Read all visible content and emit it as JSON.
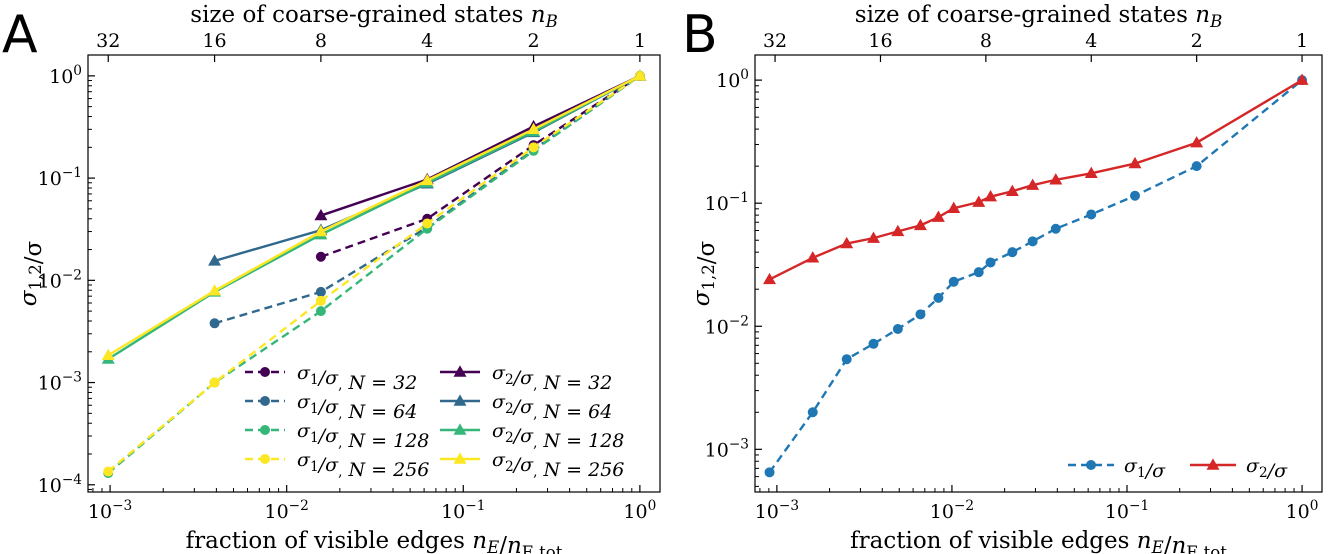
{
  "chart_data": [
    {
      "type": "line",
      "panel_label": "A",
      "xlabel_bottom": "fraction of visible edges nE/nE,tot",
      "xlabel_top": "size of coarse-grained states nB",
      "ylabel": "σ1,2/σ",
      "xscale": "log",
      "yscale": "log",
      "xlim": [
        0.00075,
        1.3
      ],
      "ylim": [
        8.5e-05,
        1.6
      ],
      "x_ticks": [
        "10^-3",
        "10^-2",
        "10^-1",
        "10^0"
      ],
      "y_ticks": [
        "10^-4",
        "10^-3",
        "10^-2",
        "10^-1",
        "10^0"
      ],
      "top_ticks": [
        "32",
        "16",
        "8",
        "4",
        "2",
        "1"
      ],
      "legend_position": "lower-right",
      "series": [
        {
          "name": "σ1/σ, N = 32",
          "legend_label": "σ1/σ, N = 32",
          "color": "#440154",
          "style": "dashed",
          "marker": "circle",
          "x": [
            0.015625,
            0.0625,
            0.25,
            1.0
          ],
          "y": [
            0.017,
            0.04,
            0.21,
            1.0
          ]
        },
        {
          "name": "σ1/σ, N = 64",
          "legend_label": "σ1/σ, N = 64",
          "color": "#31688e",
          "style": "dashed",
          "marker": "circle",
          "x": [
            0.00390625,
            0.015625,
            0.0625,
            0.25,
            1.0
          ],
          "y": [
            0.0038,
            0.0077,
            0.033,
            0.19,
            1.0
          ]
        },
        {
          "name": "σ1/σ, N = 128",
          "legend_label": "σ1/σ, N = 128",
          "color": "#35b779",
          "style": "dashed",
          "marker": "circle",
          "x": [
            0.0009765625,
            0.00390625,
            0.015625,
            0.0625,
            0.25,
            1.0
          ],
          "y": [
            0.00013,
            0.001,
            0.005,
            0.032,
            0.185,
            1.0
          ]
        },
        {
          "name": "σ1/σ, N = 256",
          "legend_label": "σ1/σ, N = 256",
          "color": "#fde725",
          "style": "dashed",
          "marker": "circle",
          "x": [
            0.0009765625,
            0.00390625,
            0.015625,
            0.0625,
            0.25,
            1.0
          ],
          "y": [
            0.000135,
            0.001,
            0.0063,
            0.036,
            0.2,
            1.0
          ]
        },
        {
          "name": "σ2/σ, N = 32",
          "legend_label": "σ2/σ, N = 32",
          "color": "#440154",
          "style": "solid",
          "marker": "triangle",
          "x": [
            0.015625,
            0.0625,
            0.25,
            1.0
          ],
          "y": [
            0.043,
            0.097,
            0.32,
            1.0
          ]
        },
        {
          "name": "σ2/σ, N = 64",
          "legend_label": "σ2/σ, N = 64",
          "color": "#31688e",
          "style": "solid",
          "marker": "triangle",
          "x": [
            0.00390625,
            0.015625,
            0.0625,
            0.25,
            1.0
          ],
          "y": [
            0.0155,
            0.031,
            0.088,
            0.28,
            1.0
          ]
        },
        {
          "name": "σ2/σ, N = 128",
          "legend_label": "σ2/σ, N = 128",
          "color": "#35b779",
          "style": "solid",
          "marker": "triangle",
          "x": [
            0.0009765625,
            0.00390625,
            0.015625,
            0.0625,
            0.25,
            1.0
          ],
          "y": [
            0.0017,
            0.0077,
            0.028,
            0.09,
            0.285,
            1.0
          ]
        },
        {
          "name": "σ2/σ, N = 256",
          "legend_label": "σ2/σ, N = 256",
          "color": "#fde725",
          "style": "solid",
          "marker": "triangle",
          "x": [
            0.0009765625,
            0.00390625,
            0.015625,
            0.0625,
            0.25,
            1.0
          ],
          "y": [
            0.00185,
            0.0079,
            0.03,
            0.095,
            0.3,
            1.0
          ]
        }
      ]
    },
    {
      "type": "line",
      "panel_label": "B",
      "xlabel_bottom": "fraction of visible edges nE/nE,tot",
      "xlabel_top": "size of coarse-grained states nB",
      "ylabel": "σ1,2/σ",
      "xscale": "log",
      "yscale": "log",
      "xlim": [
        0.00075,
        1.3
      ],
      "ylim": [
        0.00045,
        1.6
      ],
      "x_ticks": [
        "10^-3",
        "10^-2",
        "10^-1",
        "10^0"
      ],
      "y_ticks": [
        "10^-3",
        "10^-2",
        "10^-1",
        "10^0"
      ],
      "top_ticks": [
        "32",
        "16",
        "8",
        "4",
        "2",
        "1"
      ],
      "legend_position": "lower-right",
      "series": [
        {
          "name": "σ1/σ",
          "legend_label": "σ1/σ",
          "color": "#1f77b4",
          "style": "dashed",
          "marker": "circle",
          "x": [
            0.000908,
            0.001603,
            0.002506,
            0.003565,
            0.00491,
            0.00661,
            0.00837,
            0.01024,
            0.01423,
            0.01662,
            0.02213,
            0.02891,
            0.0392,
            0.0625,
            0.1111,
            0.25,
            1.0
          ],
          "y": [
            0.00065,
            0.002,
            0.0054,
            0.0072,
            0.0095,
            0.0125,
            0.017,
            0.023,
            0.0275,
            0.033,
            0.04,
            0.049,
            0.062,
            0.081,
            0.115,
            0.2,
            1.0
          ]
        },
        {
          "name": "σ2/σ",
          "legend_label": "σ2/σ",
          "color": "#d62728",
          "style": "solid",
          "marker": "triangle",
          "x": [
            0.000908,
            0.001603,
            0.002506,
            0.003565,
            0.00491,
            0.00661,
            0.00837,
            0.01024,
            0.01423,
            0.01662,
            0.02213,
            0.02891,
            0.0392,
            0.0625,
            0.1111,
            0.25,
            1.0
          ],
          "y": [
            0.024,
            0.036,
            0.047,
            0.052,
            0.059,
            0.066,
            0.077,
            0.091,
            0.102,
            0.113,
            0.125,
            0.14,
            0.155,
            0.175,
            0.21,
            0.31,
            1.0
          ]
        }
      ]
    }
  ]
}
